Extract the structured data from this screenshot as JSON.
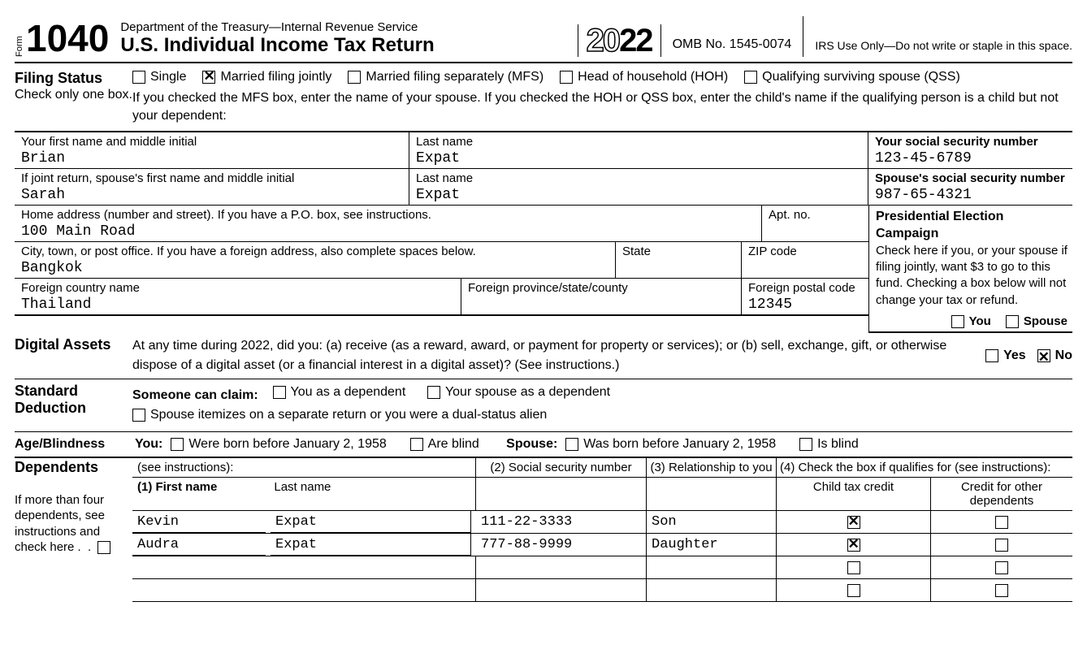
{
  "header": {
    "form_word": "Form",
    "form_number": "1040",
    "dept": "Department of the Treasury—Internal Revenue Service",
    "title": "U.S. Individual Income Tax Return",
    "year_outline": "20",
    "year_solid": "22",
    "omb": "OMB No. 1545-0074",
    "irs_use": "IRS Use Only—Do not write or staple in this space."
  },
  "filing": {
    "label": "Filing Status",
    "sub": "Check only one box.",
    "options": {
      "single": "Single",
      "mfj": "Married filing jointly",
      "mfs": "Married filing separately (MFS)",
      "hoh": "Head of household (HOH)",
      "qss": "Qualifying surviving spouse (QSS)"
    },
    "checked": "mfj",
    "note": "If you checked the MFS box, enter the name of your spouse. If you checked the HOH or QSS box, enter the child's name if the qualifying person is a child but not your dependent:"
  },
  "taxpayer": {
    "first_label": "Your first name and middle initial",
    "first": "Brian",
    "last_label": "Last name",
    "last": "Expat",
    "ssn_label": "Your social security number",
    "ssn": "123-45-6789"
  },
  "spouse": {
    "first_label": "If joint return, spouse's first name and middle initial",
    "first": "Sarah",
    "last_label": "Last name",
    "last": "Expat",
    "ssn_label": "Spouse's social security number",
    "ssn": "987-65-4321"
  },
  "address": {
    "street_label": "Home address (number and street). If you have a P.O. box, see instructions.",
    "street": "100 Main Road",
    "apt_label": "Apt. no.",
    "apt": "",
    "city_label": "City, town, or post office. If you have a foreign address, also complete spaces below.",
    "city": "Bangkok",
    "state_label": "State",
    "state": "",
    "zip_label": "ZIP code",
    "zip": "",
    "fcountry_label": "Foreign country name",
    "fcountry": "Thailand",
    "fprov_label": "Foreign province/state/county",
    "fprov": "",
    "fpostal_label": "Foreign postal code",
    "fpostal": "12345"
  },
  "pec": {
    "heading": "Presidential Election Campaign",
    "text": "Check here if you, or your spouse if filing jointly, want $3 to go to this fund. Checking a box below will not change your tax or refund.",
    "you": "You",
    "spouse": "Spouse",
    "you_checked": false,
    "spouse_checked": false
  },
  "digital": {
    "label": "Digital Assets",
    "text": "At any time during 2022, did you: (a) receive (as a reward, award, or payment for property or services); or (b) sell, exchange, gift, or otherwise dispose of a digital asset (or a financial interest in a digital asset)? (See instructions.)",
    "yes": "Yes",
    "no": "No",
    "answer": "no"
  },
  "std": {
    "label": "Standard Deduction",
    "someone": "Someone can claim:",
    "you_dep": "You as a dependent",
    "spouse_dep": "Your spouse as a dependent",
    "spouse_itemize": "Spouse itemizes on a separate return or you were a dual-status alien"
  },
  "age": {
    "label": "Age/Blindness",
    "you": "You:",
    "born": "Were born before January 2, 1958",
    "blind1": "Are blind",
    "spouse": "Spouse:",
    "born2": "Was born before January 2, 1958",
    "blind2": "Is blind"
  },
  "dep": {
    "label": "Dependents",
    "see": "(see instructions):",
    "note": "If more than four dependents, see instructions and check here",
    "col1": "(1) First name",
    "col1b": "Last name",
    "col2": "(2) Social security number",
    "col3": "(3) Relationship to you",
    "col4": "(4) Check the box if qualifies for (see instructions):",
    "col4a": "Child tax credit",
    "col4b": "Credit for other dependents",
    "rows": [
      {
        "first": "Kevin",
        "last": "Expat",
        "ssn": "111-22-3333",
        "rel": "Son",
        "ctc": true,
        "other": false
      },
      {
        "first": "Audra",
        "last": "Expat",
        "ssn": "777-88-9999",
        "rel": "Daughter",
        "ctc": true,
        "other": false
      },
      {
        "first": "",
        "last": "",
        "ssn": "",
        "rel": "",
        "ctc": false,
        "other": false
      },
      {
        "first": "",
        "last": "",
        "ssn": "",
        "rel": "",
        "ctc": false,
        "other": false
      }
    ]
  }
}
